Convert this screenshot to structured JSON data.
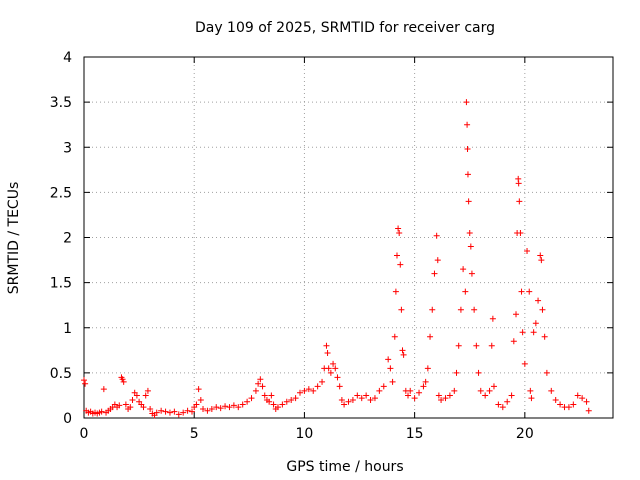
{
  "chart_data": {
    "type": "scatter",
    "title": "Day 109 of 2025, SRMTID for receiver carg",
    "xlabel": "GPS time / hours",
    "ylabel": "SRMTID / TECUs",
    "xlim": [
      0,
      24
    ],
    "ylim": [
      0,
      4
    ],
    "xticks": [
      0,
      5,
      10,
      15,
      20
    ],
    "yticks": [
      0,
      0.5,
      1,
      1.5,
      2,
      2.5,
      3,
      3.5,
      4
    ],
    "xtick_labels": [
      "0",
      "5",
      "10",
      "15",
      "20"
    ],
    "ytick_labels": [
      "0",
      "0.5",
      "1",
      "1.5",
      "2",
      "2.5",
      "3",
      "3.5",
      "4"
    ],
    "grid": true,
    "marker": "+",
    "color": "#ff0000",
    "series": [
      {
        "name": "SRMTID",
        "points": [
          [
            0.0,
            0.42
          ],
          [
            0.05,
            0.38
          ],
          [
            0.1,
            0.08
          ],
          [
            0.2,
            0.06
          ],
          [
            0.3,
            0.07
          ],
          [
            0.4,
            0.05
          ],
          [
            0.5,
            0.06
          ],
          [
            0.6,
            0.05
          ],
          [
            0.7,
            0.06
          ],
          [
            0.8,
            0.07
          ],
          [
            0.9,
            0.32
          ],
          [
            1.0,
            0.06
          ],
          [
            1.1,
            0.08
          ],
          [
            1.2,
            0.1
          ],
          [
            1.3,
            0.12
          ],
          [
            1.4,
            0.15
          ],
          [
            1.5,
            0.12
          ],
          [
            1.6,
            0.14
          ],
          [
            1.7,
            0.45
          ],
          [
            1.75,
            0.43
          ],
          [
            1.8,
            0.4
          ],
          [
            1.9,
            0.15
          ],
          [
            2.0,
            0.1
          ],
          [
            2.1,
            0.12
          ],
          [
            2.2,
            0.2
          ],
          [
            2.3,
            0.28
          ],
          [
            2.4,
            0.25
          ],
          [
            2.5,
            0.18
          ],
          [
            2.6,
            0.15
          ],
          [
            2.7,
            0.12
          ],
          [
            2.8,
            0.25
          ],
          [
            2.9,
            0.3
          ],
          [
            3.0,
            0.1
          ],
          [
            3.1,
            0.05
          ],
          [
            3.2,
            0.03
          ],
          [
            3.3,
            0.06
          ],
          [
            3.5,
            0.08
          ],
          [
            3.7,
            0.07
          ],
          [
            3.9,
            0.06
          ],
          [
            4.1,
            0.07
          ],
          [
            4.3,
            0.04
          ],
          [
            4.5,
            0.06
          ],
          [
            4.7,
            0.08
          ],
          [
            4.9,
            0.07
          ],
          [
            5.0,
            0.12
          ],
          [
            5.1,
            0.15
          ],
          [
            5.2,
            0.32
          ],
          [
            5.3,
            0.2
          ],
          [
            5.4,
            0.1
          ],
          [
            5.6,
            0.08
          ],
          [
            5.8,
            0.1
          ],
          [
            6.0,
            0.12
          ],
          [
            6.2,
            0.11
          ],
          [
            6.4,
            0.13
          ],
          [
            6.6,
            0.12
          ],
          [
            6.8,
            0.14
          ],
          [
            7.0,
            0.12
          ],
          [
            7.2,
            0.15
          ],
          [
            7.4,
            0.18
          ],
          [
            7.6,
            0.22
          ],
          [
            7.8,
            0.3
          ],
          [
            7.9,
            0.38
          ],
          [
            8.0,
            0.43
          ],
          [
            8.1,
            0.35
          ],
          [
            8.2,
            0.25
          ],
          [
            8.3,
            0.2
          ],
          [
            8.4,
            0.18
          ],
          [
            8.5,
            0.25
          ],
          [
            8.6,
            0.15
          ],
          [
            8.7,
            0.1
          ],
          [
            8.8,
            0.12
          ],
          [
            9.0,
            0.15
          ],
          [
            9.2,
            0.18
          ],
          [
            9.4,
            0.2
          ],
          [
            9.6,
            0.22
          ],
          [
            9.8,
            0.28
          ],
          [
            10.0,
            0.3
          ],
          [
            10.2,
            0.32
          ],
          [
            10.4,
            0.3
          ],
          [
            10.6,
            0.35
          ],
          [
            10.8,
            0.4
          ],
          [
            10.9,
            0.55
          ],
          [
            11.0,
            0.8
          ],
          [
            11.05,
            0.72
          ],
          [
            11.1,
            0.55
          ],
          [
            11.2,
            0.5
          ],
          [
            11.3,
            0.6
          ],
          [
            11.4,
            0.55
          ],
          [
            11.5,
            0.45
          ],
          [
            11.6,
            0.35
          ],
          [
            11.7,
            0.2
          ],
          [
            11.8,
            0.15
          ],
          [
            12.0,
            0.18
          ],
          [
            12.2,
            0.2
          ],
          [
            12.4,
            0.25
          ],
          [
            12.6,
            0.22
          ],
          [
            12.8,
            0.25
          ],
          [
            13.0,
            0.2
          ],
          [
            13.2,
            0.22
          ],
          [
            13.4,
            0.3
          ],
          [
            13.6,
            0.35
          ],
          [
            13.8,
            0.65
          ],
          [
            13.9,
            0.55
          ],
          [
            14.0,
            0.4
          ],
          [
            14.1,
            0.9
          ],
          [
            14.15,
            1.4
          ],
          [
            14.2,
            1.8
          ],
          [
            14.25,
            2.1
          ],
          [
            14.3,
            2.05
          ],
          [
            14.35,
            1.7
          ],
          [
            14.4,
            1.2
          ],
          [
            14.45,
            0.75
          ],
          [
            14.5,
            0.7
          ],
          [
            14.6,
            0.3
          ],
          [
            14.7,
            0.25
          ],
          [
            14.8,
            0.3
          ],
          [
            15.0,
            0.22
          ],
          [
            15.2,
            0.28
          ],
          [
            15.4,
            0.35
          ],
          [
            15.5,
            0.4
          ],
          [
            15.6,
            0.55
          ],
          [
            15.7,
            0.9
          ],
          [
            15.8,
            1.2
          ],
          [
            15.9,
            1.6
          ],
          [
            16.0,
            2.02
          ],
          [
            16.05,
            1.75
          ],
          [
            16.1,
            0.25
          ],
          [
            16.2,
            0.2
          ],
          [
            16.4,
            0.22
          ],
          [
            16.6,
            0.25
          ],
          [
            16.8,
            0.3
          ],
          [
            16.9,
            0.5
          ],
          [
            17.0,
            0.8
          ],
          [
            17.1,
            1.2
          ],
          [
            17.2,
            1.65
          ],
          [
            17.3,
            1.4
          ],
          [
            17.35,
            3.5
          ],
          [
            17.38,
            3.25
          ],
          [
            17.4,
            2.98
          ],
          [
            17.42,
            2.7
          ],
          [
            17.45,
            2.4
          ],
          [
            17.5,
            2.05
          ],
          [
            17.55,
            1.9
          ],
          [
            17.6,
            1.6
          ],
          [
            17.7,
            1.2
          ],
          [
            17.8,
            0.8
          ],
          [
            17.9,
            0.5
          ],
          [
            18.0,
            0.3
          ],
          [
            18.2,
            0.25
          ],
          [
            18.4,
            0.3
          ],
          [
            18.5,
            0.8
          ],
          [
            18.55,
            1.1
          ],
          [
            18.6,
            0.35
          ],
          [
            18.8,
            0.15
          ],
          [
            19.0,
            0.12
          ],
          [
            19.2,
            0.18
          ],
          [
            19.4,
            0.25
          ],
          [
            19.5,
            0.85
          ],
          [
            19.6,
            1.15
          ],
          [
            19.65,
            2.05
          ],
          [
            19.7,
            2.65
          ],
          [
            19.72,
            2.6
          ],
          [
            19.75,
            2.4
          ],
          [
            19.8,
            2.05
          ],
          [
            19.85,
            1.4
          ],
          [
            19.9,
            0.95
          ],
          [
            20.0,
            0.6
          ],
          [
            20.1,
            1.85
          ],
          [
            20.2,
            1.4
          ],
          [
            20.25,
            0.3
          ],
          [
            20.3,
            0.22
          ],
          [
            20.4,
            0.95
          ],
          [
            20.5,
            1.05
          ],
          [
            20.6,
            1.3
          ],
          [
            20.7,
            1.8
          ],
          [
            20.75,
            1.75
          ],
          [
            20.8,
            1.2
          ],
          [
            20.9,
            0.9
          ],
          [
            21.0,
            0.5
          ],
          [
            21.2,
            0.3
          ],
          [
            21.4,
            0.2
          ],
          [
            21.6,
            0.15
          ],
          [
            21.8,
            0.12
          ],
          [
            22.0,
            0.12
          ],
          [
            22.2,
            0.15
          ],
          [
            22.4,
            0.25
          ],
          [
            22.6,
            0.22
          ],
          [
            22.8,
            0.18
          ],
          [
            22.9,
            0.08
          ]
        ]
      }
    ]
  }
}
